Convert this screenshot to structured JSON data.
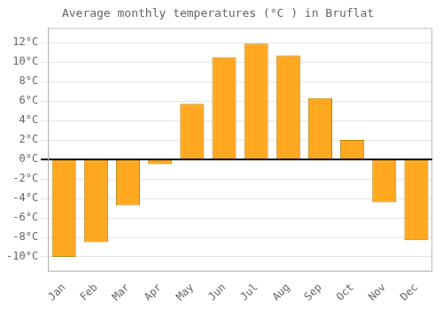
{
  "chart_data": {
    "type": "bar",
    "title": "Average monthly temperatures (°C ) in Bruflat",
    "categories": [
      "Jan",
      "Feb",
      "Mar",
      "Apr",
      "May",
      "Jun",
      "Jul",
      "Aug",
      "Sep",
      "Oct",
      "Nov",
      "Dec"
    ],
    "values": [
      -10.0,
      -8.5,
      -4.7,
      -0.5,
      5.7,
      10.5,
      11.9,
      10.7,
      6.3,
      2.0,
      -4.4,
      -8.3
    ],
    "color": "#FFA820",
    "ylim": [
      -11.5,
      13.5
    ],
    "yticks": [
      {
        "value": -10,
        "label": "-10°C"
      },
      {
        "value": -8,
        "label": "-8°C"
      },
      {
        "value": -6,
        "label": "-6°C"
      },
      {
        "value": -4,
        "label": "-4°C"
      },
      {
        "value": -2,
        "label": "-2°C"
      },
      {
        "value": 0,
        "label": "0°C"
      },
      {
        "value": 2,
        "label": "2°C"
      },
      {
        "value": 4,
        "label": "4°C"
      },
      {
        "value": 6,
        "label": "6°C"
      },
      {
        "value": 8,
        "label": "8°C"
      },
      {
        "value": 10,
        "label": "10°C"
      },
      {
        "value": 12,
        "label": "12°C"
      }
    ],
    "grid": true
  }
}
